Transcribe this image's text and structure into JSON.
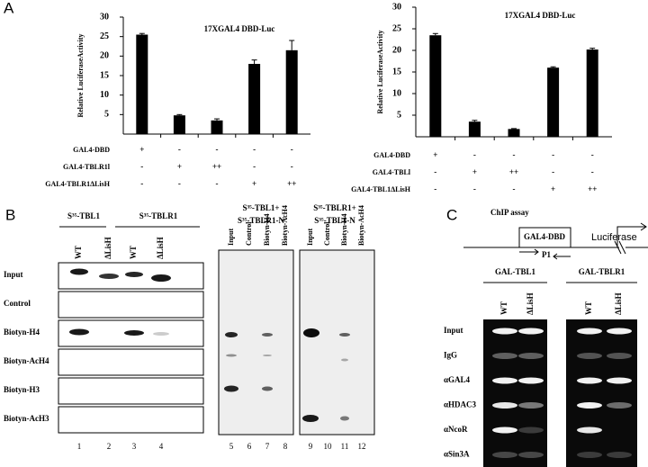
{
  "panel_labels": [
    "A",
    "B",
    "C"
  ],
  "chart_data": [
    {
      "type": "bar",
      "title": "17XGAL4 DBD-Luc",
      "y_label": "Relative LuciferaseActivity",
      "ylim": [
        0,
        30
      ],
      "yticks": [
        5,
        10,
        15,
        20,
        25,
        30
      ],
      "color": "#000000",
      "values": [
        25.5,
        4.8,
        3.5,
        18,
        21.5
      ],
      "errors": [
        0.3,
        0.2,
        0.4,
        1.0,
        2.5
      ],
      "conditions": [
        {
          "name": "GAL4-DBD",
          "marks": [
            "+",
            "-",
            "-",
            "-",
            "-"
          ]
        },
        {
          "name": "GAL4-TBLR1l",
          "marks": [
            "-",
            "+",
            "++",
            "-",
            "-"
          ]
        },
        {
          "name": "GAL4-TBLR1ΔLisH",
          "marks": [
            "-",
            "-",
            "-",
            "+",
            "++"
          ]
        }
      ]
    },
    {
      "type": "bar",
      "title": "17XGAL4 DBD-Luc",
      "y_label": "Relative LuciferaseActivity",
      "ylim": [
        0,
        30
      ],
      "yticks": [
        5,
        10,
        15,
        20,
        25,
        30
      ],
      "color": "#000000",
      "values": [
        23.5,
        3.5,
        1.8,
        16,
        20.2
      ],
      "errors": [
        0.4,
        0.3,
        0.1,
        0.2,
        0.3
      ],
      "conditions": [
        {
          "name": "GAL4-DBD",
          "marks": [
            "+",
            "-",
            "-",
            "-",
            "-"
          ]
        },
        {
          "name": "GAL4-TBLl",
          "marks": [
            "-",
            "+",
            "++",
            "-",
            "-"
          ]
        },
        {
          "name": "GAL4-TBL1ΔLisH",
          "marks": [
            "-",
            "-",
            "-",
            "+",
            "++"
          ]
        }
      ]
    }
  ],
  "panel_b": {
    "gel1": {
      "groups": [
        "S³⁵-TBL1",
        "S³⁵-TBLR1"
      ],
      "lanes": [
        "WT",
        "ΔLisH",
        "WT",
        "ΔLisH"
      ],
      "rows": [
        "Input",
        "Control",
        "Biotyn-H4",
        "Biotyn-AcH4",
        "Biotyn-H3",
        "Biotyn-AcH3"
      ],
      "lane_numbers": [
        1,
        2,
        3,
        4
      ]
    },
    "gel2": {
      "header": [
        "S³⁵-TBL1+",
        "S³⁵-TBLR1-N"
      ],
      "lanes": [
        "Input",
        "Control",
        "Biotyn-H4",
        "Biotyn-AcH4"
      ],
      "lane_numbers": [
        5,
        6,
        7,
        8
      ]
    },
    "gel3": {
      "header": [
        "S³⁵-TBLR1+",
        "S³⁵-TBL1-N"
      ],
      "lanes": [
        "Input",
        "Control",
        "Biotyn-H4",
        "Biotyn-AcH4"
      ],
      "lane_numbers": [
        9,
        10,
        11,
        12
      ]
    }
  },
  "panel_c": {
    "assay": "ChIP assay",
    "construct": "GAL4-DBD",
    "primer": "P1",
    "reporter": "Luciferase",
    "groups": [
      "GAL-TBL1",
      "GAL-TBLR1"
    ],
    "lanes": [
      "WT",
      "ΔLisH",
      "WT",
      "ΔLisH"
    ],
    "rows": [
      "Input",
      "IgG",
      "αGAL4",
      "αHDAC3",
      "αNcoR",
      "αSin3A"
    ]
  }
}
